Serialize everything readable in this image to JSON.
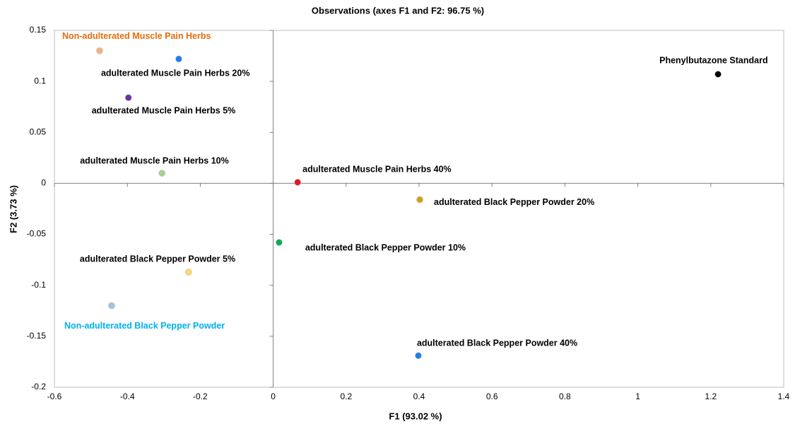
{
  "chart_data": {
    "type": "scatter",
    "title": "Observations (axes F1 and F2: 96.75 %)",
    "x_label": "F1 (93.02 %)",
    "y_label": "F2 (3.73 %)",
    "xlim": [
      -0.6,
      1.4
    ],
    "xticks": [
      -0.6,
      -0.4,
      -0.2,
      0,
      0.2,
      0.4,
      0.6,
      0.8,
      1,
      1.2,
      1.4
    ],
    "ylim": [
      -0.2,
      0.15
    ],
    "yticks": [
      -0.2,
      -0.15,
      -0.1,
      -0.05,
      0,
      0.05,
      0.1,
      0.15
    ],
    "labels": [
      "Non-adulterated  Muscle Pain Herbs",
      "adulterated  Muscle Pain Herbs  20%",
      "adulterated  Muscle Pain Herbs  5%",
      "adulterated  Muscle Pain Herbs  10%",
      "adulterated  Muscle Pain Herbs  40%",
      "adulterated Black Pepper Powder 20%",
      "adulterated Black Pepper Powder 10%",
      "adulterated Black Pepper Powder 5%",
      "Non-adulterated Black Pepper Powder",
      "adulterated Black Pepper Powder 40%",
      "Phenylbutazone Standard"
    ],
    "x": [
      -0.476,
      -0.259,
      -0.397,
      -0.305,
      0.067,
      0.402,
      0.016,
      -0.232,
      -0.443,
      0.398,
      1.22
    ],
    "y": [
      0.13,
      0.122,
      0.084,
      0.01,
      0.001,
      -0.016,
      -0.058,
      -0.087,
      -0.12,
      -0.169,
      0.107
    ],
    "colors": [
      "#f4b183",
      "#1f7ff0",
      "#7030a0",
      "#a9d18e",
      "#e8141c",
      "#d4a017",
      "#00b050",
      "#ffd966",
      "#9dc3e6",
      "#1f7ff0",
      "#000000"
    ],
    "label_colors": [
      "#e46c0a",
      "#000000",
      "#000000",
      "#000000",
      "#000000",
      "#000000",
      "#000000",
      "#000000",
      "#00b0f0",
      "#000000",
      "#000000"
    ]
  }
}
